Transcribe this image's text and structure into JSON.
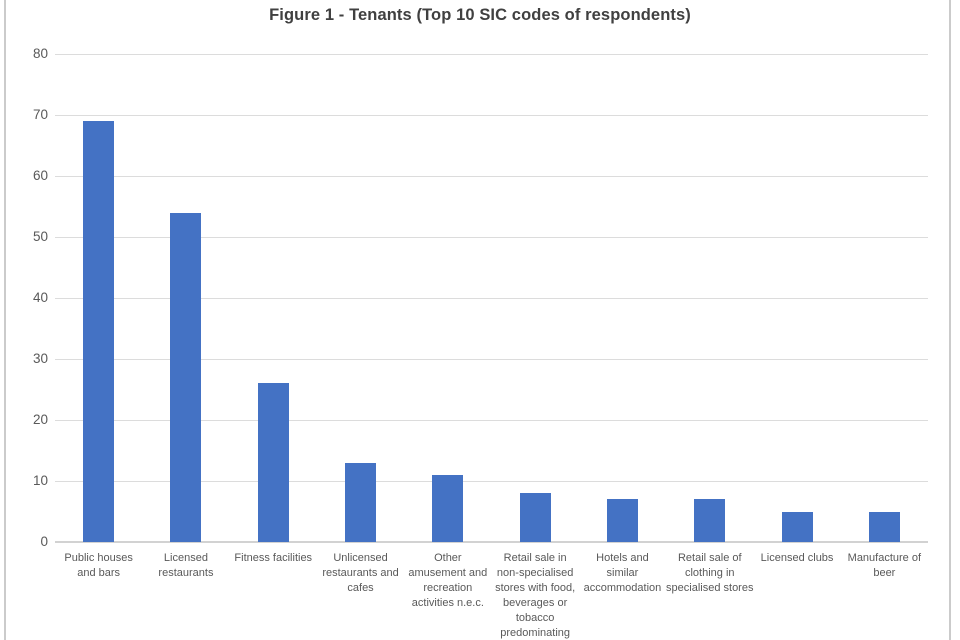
{
  "chart_data": {
    "type": "bar",
    "title": "Figure 1 - Tenants (Top 10 SIC codes of respondents)",
    "categories": [
      "Public houses\nand bars",
      "Licensed\nrestaurants",
      "Fitness facilities",
      "Unlicensed\nrestaurants and\ncafes",
      "Other\namusement and\nrecreation\nactivities n.e.c.",
      "Retail sale in\nnon-specialised\nstores with food,\nbeverages or\ntobacco\npredominating",
      "Hotels and\nsimilar\naccommodation",
      "Retail sale of\nclothing in\nspecialised stores",
      "Licensed clubs",
      "Manufacture of\nbeer"
    ],
    "values": [
      69,
      54,
      26,
      13,
      11,
      8,
      7,
      7,
      5,
      5
    ],
    "xlabel": "",
    "ylabel": "",
    "ylim": [
      0,
      80
    ],
    "yticks": [
      0,
      10,
      20,
      30,
      40,
      50,
      60,
      70,
      80
    ],
    "grid": "horizontal",
    "legend_position": "none"
  },
  "colors": {
    "bar": "#4472C4",
    "gridline": "#dcdcdc",
    "axis_line": "#d2d2d2",
    "title_text": "#404040",
    "tick_text": "#595959",
    "frame_border": "#cbcbcb",
    "background": "#ffffff"
  }
}
